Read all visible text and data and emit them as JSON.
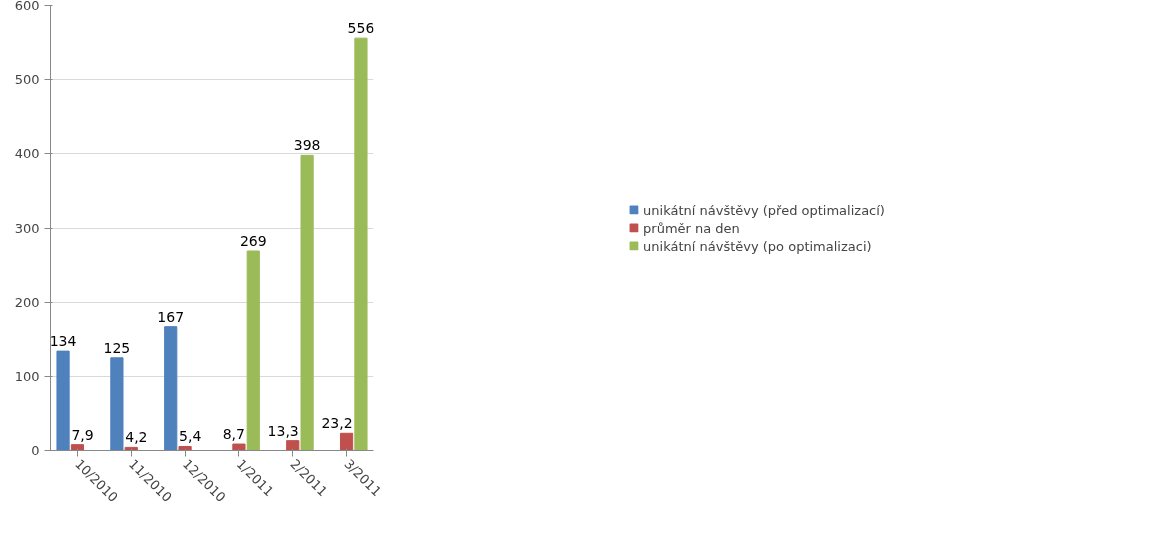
{
  "chart_data": {
    "type": "bar",
    "categories": [
      "10/2010",
      "11/2010",
      "12/2010",
      "1/2011",
      "2/2011",
      "3/2011"
    ],
    "series": [
      {
        "name": "unikátní návštěvy (před optimalizací)",
        "color": "#4f81bd",
        "values": [
          134,
          125,
          167,
          null,
          null,
          null
        ],
        "value_labels": [
          "134",
          "125",
          "167",
          null,
          null,
          null
        ]
      },
      {
        "name": "průměr na den",
        "color": "#c0504d",
        "values": [
          7.9,
          4.2,
          5.4,
          8.7,
          13.3,
          23.2
        ],
        "value_labels": [
          "7,9",
          "4,2",
          "5,4",
          "8,7",
          "13,3",
          "23,2"
        ]
      },
      {
        "name": "unikátní návštěvy (po optimalizaci)",
        "color": "#9bbb59",
        "values": [
          null,
          null,
          null,
          269,
          398,
          556
        ],
        "value_labels": [
          null,
          null,
          null,
          "269",
          "398",
          "556"
        ]
      }
    ],
    "ylim": [
      0,
      600
    ],
    "yticks": [
      0,
      100,
      200,
      300,
      400,
      500,
      600
    ],
    "grid": "y",
    "legend": "right"
  }
}
